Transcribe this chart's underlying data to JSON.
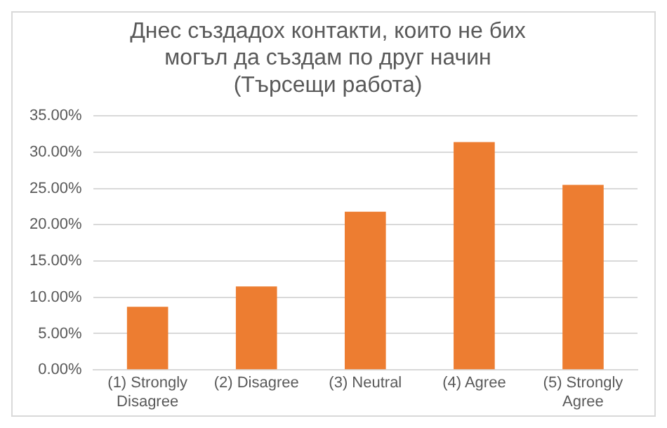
{
  "chart_data": {
    "type": "bar",
    "title": "Днес създадох контакти, които  не бих могъл да създам по друг начин",
    "subtitle": "(Търсещи работа)",
    "categories": [
      "(1) Strongly Disagree",
      "(2) Disagree",
      "(3) Neutral",
      "(4) Agree",
      "(5) Strongly Agree"
    ],
    "values": [
      8.7,
      11.5,
      21.8,
      31.4,
      25.5
    ],
    "color": "#ed7d31",
    "ylim": [
      0,
      35
    ],
    "yticks": [
      {
        "value": 0,
        "label": "0.00%"
      },
      {
        "value": 5,
        "label": "5.00%"
      },
      {
        "value": 10,
        "label": "10.00%"
      },
      {
        "value": 15,
        "label": "15.00%"
      },
      {
        "value": 20,
        "label": "20.00%"
      },
      {
        "value": 25,
        "label": "25.00%"
      },
      {
        "value": 30,
        "label": "30.00%"
      },
      {
        "value": 35,
        "label": "35.00%"
      }
    ],
    "grid": "y",
    "legend": false
  }
}
